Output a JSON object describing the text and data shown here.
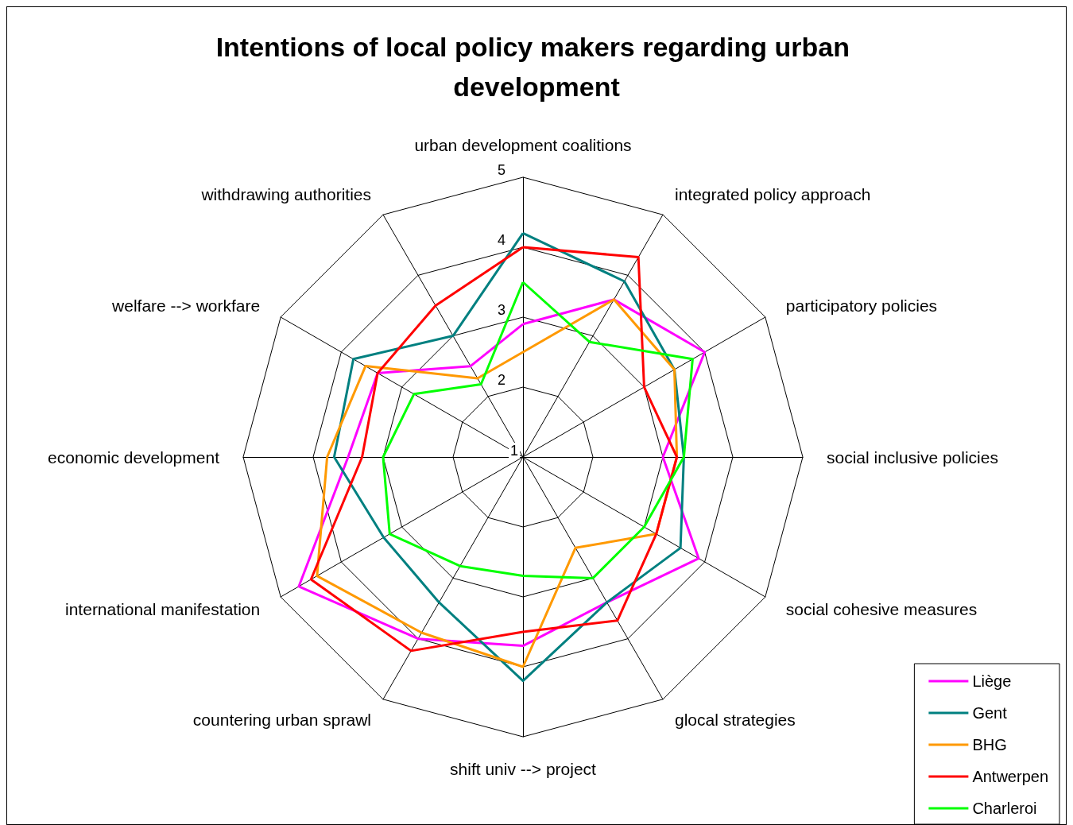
{
  "chart_data": {
    "type": "radar",
    "title": "Intentions of local policy makers regarding urban development",
    "categories": [
      "urban development coalitions",
      "integrated policy approach",
      "participatory policies",
      "social inclusive policies",
      "social cohesive measures",
      "glocal strategies",
      "shift univ --> project",
      "countering urban sprawl",
      "international manifestation",
      "economic development",
      "welfare --> workfare",
      "withdrawing authorities"
    ],
    "series": [
      {
        "name": "Liège",
        "color": "#ff00ff",
        "values": [
          2.9,
          3.6,
          4.0,
          3.0,
          3.9,
          3.4,
          3.7,
          4.0,
          4.7,
          3.5,
          3.4,
          2.5
        ]
      },
      {
        "name": "Gent",
        "color": "#008080",
        "values": [
          4.2,
          3.9,
          3.5,
          3.3,
          3.6,
          3.4,
          4.2,
          3.4,
          3.3,
          3.7,
          3.8,
          3.0
        ]
      },
      {
        "name": "BHG",
        "color": "#ff9900",
        "values": [
          2.5,
          3.6,
          3.5,
          3.2,
          3.2,
          2.5,
          4.0,
          3.9,
          4.4,
          3.8,
          3.6,
          2.3
        ]
      },
      {
        "name": "Antwerpen",
        "color": "#ff0000",
        "values": [
          4.0,
          4.3,
          3.0,
          3.2,
          3.2,
          3.7,
          3.5,
          4.2,
          4.5,
          3.3,
          3.4,
          3.5
        ]
      },
      {
        "name": "Charleroi",
        "color": "#00ff00",
        "values": [
          3.5,
          2.9,
          3.8,
          3.3,
          3.0,
          3.0,
          2.7,
          2.8,
          3.2,
          3.0,
          2.8,
          2.2
        ]
      }
    ],
    "ylim": [
      1,
      5
    ],
    "yticks": [
      1,
      2,
      3,
      4,
      5
    ],
    "grid": true,
    "legend": "bottom right"
  }
}
